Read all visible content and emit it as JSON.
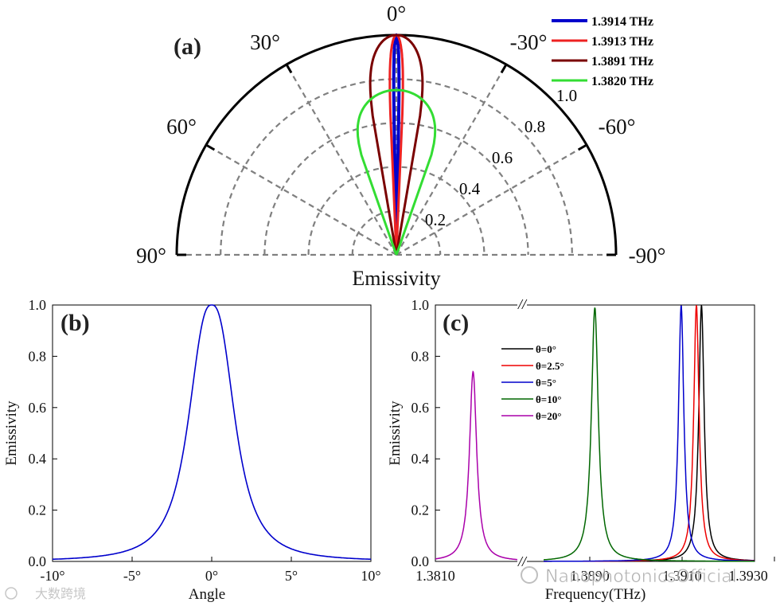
{
  "chart_data": [
    {
      "type": "polar",
      "panel_label": "(a)",
      "xlabel": "Emissivity",
      "angle_labels": [
        "90°",
        "60°",
        "30°",
        "0°",
        "-30°",
        "-60°",
        "-90°"
      ],
      "angles_deg": [
        90,
        60,
        30,
        0,
        -30,
        -60,
        -90
      ],
      "radial_ticks": [
        "0.2",
        "0.4",
        "0.6",
        "0.8",
        "1.0"
      ],
      "radial_values": [
        0.2,
        0.4,
        0.6,
        0.8,
        1.0
      ],
      "series": [
        {
          "name": "1.3914 THz",
          "color": "#0000cc",
          "peak": 1.0,
          "half_width_deg": 1.0
        },
        {
          "name": "1.3913 THz",
          "color": "#ee2222",
          "peak": 1.0,
          "half_width_deg": 2.5
        },
        {
          "name": "1.3891 THz",
          "color": "#7a0000",
          "peak": 1.0,
          "half_width_deg": 10.0
        },
        {
          "name": "1.3820 THz",
          "color": "#33dd33",
          "peak": 0.75,
          "half_width_deg": 20.0
        }
      ]
    },
    {
      "type": "line",
      "panel_label": "(b)",
      "xlabel": "Angle",
      "ylabel": "Emissivity",
      "xlim": [
        -10,
        10
      ],
      "ylim": [
        0,
        1
      ],
      "xtick_values": [
        -10,
        -5,
        0,
        5,
        10
      ],
      "xtick_labels": [
        "-10°",
        "-5°",
        "0°",
        "5°",
        "10°"
      ],
      "ytick_values": [
        0,
        0.2,
        0.4,
        0.6,
        0.8,
        1.0
      ],
      "ytick_labels": [
        "0.0",
        "0.2",
        "0.4",
        "0.6",
        "0.8",
        "1.0"
      ],
      "series": [
        {
          "name": "emissivity",
          "color": "#0000cc",
          "center": 0,
          "peak": 1.0,
          "half_width": 1.6,
          "shape": "flat-top lorentzian"
        }
      ]
    },
    {
      "type": "line",
      "panel_label": "(c)",
      "xlabel": "Frequency(THz)",
      "ylabel": "Emissivity",
      "ylim": [
        0,
        1
      ],
      "axis_break": "//",
      "xtick_labels": [
        "1.3810",
        "1.3890",
        "1.3910",
        "1.3930"
      ],
      "ytick_values": [
        0,
        0.2,
        0.4,
        0.6,
        0.8,
        1.0
      ],
      "ytick_labels": [
        "0.0",
        "0.2",
        "0.4",
        "0.6",
        "0.8",
        "1.0"
      ],
      "legend_position": "top-center",
      "series": [
        {
          "name": "θ=0°",
          "color": "#000000",
          "center": 1.39142,
          "peak": 1.0
        },
        {
          "name": "θ=2.5°",
          "color": "#ee0000",
          "center": 1.39131,
          "peak": 1.0
        },
        {
          "name": "θ=5°",
          "color": "#0000cc",
          "center": 1.39098,
          "peak": 1.0
        },
        {
          "name": "θ=10°",
          "color": "#006600",
          "center": 1.38911,
          "peak": 0.99
        },
        {
          "name": "θ=20°",
          "color": "#aa00aa",
          "center": 1.38203,
          "peak": 0.74
        }
      ]
    }
  ],
  "watermark": {
    "left": "大数跨境",
    "right": "NanophotonicsOfficial"
  }
}
